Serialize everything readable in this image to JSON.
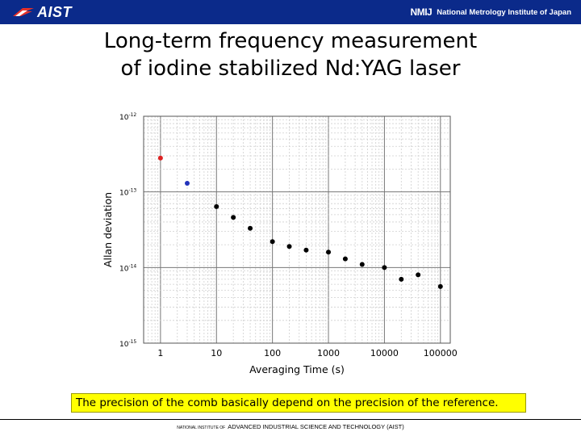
{
  "header": {
    "left_logo_text": "AIST",
    "right_logo_text": "NMIJ",
    "right_org": "National Metrology Institute of Japan",
    "bar_color": "#0b2a8a"
  },
  "title": {
    "line1": "Long-term frequency measurement",
    "line2": "of iodine stabilized Nd:YAG laser"
  },
  "chart_data": {
    "type": "scatter",
    "xscale": "log",
    "yscale": "log",
    "xlim": [
      0.5,
      150000
    ],
    "ylim": [
      1e-15,
      1e-12
    ],
    "xlabel": "Averaging Time (s)",
    "ylabel": "Allan deviation",
    "xticks": [
      {
        "value": 1,
        "label": "1"
      },
      {
        "value": 10,
        "label": "10"
      },
      {
        "value": 100,
        "label": "100"
      },
      {
        "value": 1000,
        "label": "1000"
      },
      {
        "value": 10000,
        "label": "10000"
      },
      {
        "value": 100000,
        "label": "100000"
      }
    ],
    "yticks": [
      {
        "value": 1e-12,
        "base": "10",
        "exp": "-12"
      },
      {
        "value": 1e-13,
        "base": "10",
        "exp": "-13"
      },
      {
        "value": 1e-14,
        "base": "10",
        "exp": "-14"
      },
      {
        "value": 1e-15,
        "base": "10",
        "exp": "-15"
      }
    ],
    "grid": true,
    "series": [
      {
        "color": "#dd2222",
        "points": [
          [
            1,
            2.8e-13
          ]
        ]
      },
      {
        "color": "#2233bb",
        "points": [
          [
            3,
            1.3e-13
          ]
        ]
      },
      {
        "color": "#000000",
        "points": [
          [
            10,
            6.4e-14
          ],
          [
            20,
            4.6e-14
          ],
          [
            40,
            3.3e-14
          ],
          [
            100,
            2.2e-14
          ],
          [
            200,
            1.9e-14
          ],
          [
            400,
            1.7e-14
          ],
          [
            1000,
            1.6e-14
          ],
          [
            2000,
            1.3e-14
          ],
          [
            4000,
            1.1e-14
          ],
          [
            10000,
            1e-14
          ],
          [
            20000,
            7e-15
          ],
          [
            40000,
            8e-15
          ],
          [
            100000,
            5.6e-15
          ]
        ]
      }
    ]
  },
  "caption": "The precision of the comb basically depend on the precision of the reference.",
  "footer": {
    "prefix": "NATIONAL INSTITUTE OF",
    "text": "ADVANCED INDUSTRIAL SCIENCE AND TECHNOLOGY (AIST)"
  }
}
